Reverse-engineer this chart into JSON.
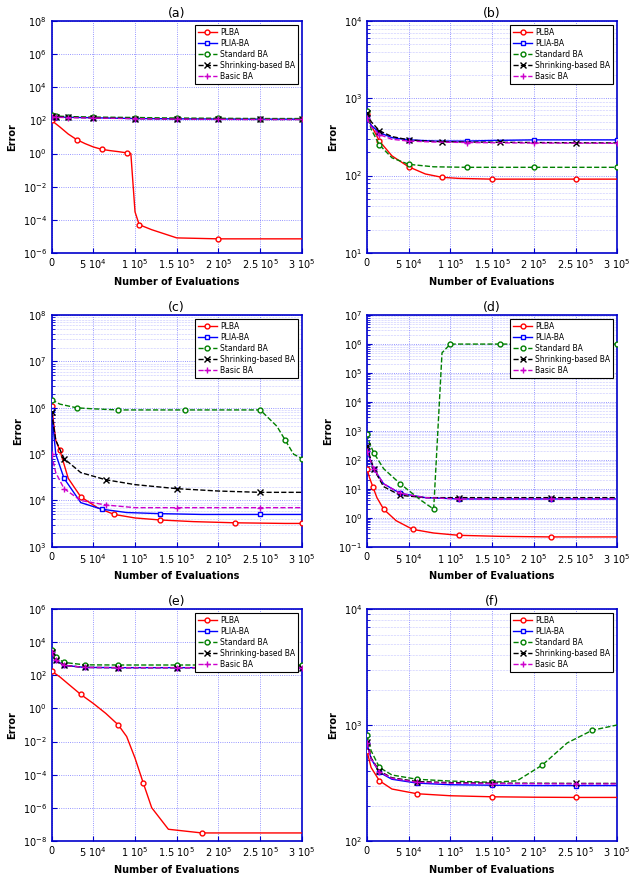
{
  "subplot_titles": [
    "(a)",
    "(b)",
    "(c)",
    "(d)",
    "(e)",
    "(f)"
  ],
  "xlabel": "Number of Evaluations",
  "ylabel": "Error",
  "plots": {
    "a": {
      "ylim": [
        1e-06,
        100000000.0
      ],
      "lines": {
        "PLBA": {
          "x": [
            0,
            10000,
            20000,
            30000,
            40000,
            50000,
            60000,
            70000,
            80000,
            90000,
            95000,
            100000,
            105000,
            120000,
            150000,
            200000,
            250000,
            300000
          ],
          "y": [
            100,
            40,
            15,
            7,
            4,
            2.5,
            1.8,
            1.5,
            1.3,
            1.1,
            1.0,
            0.0003,
            5e-05,
            2.5e-05,
            8e-06,
            7e-06,
            7e-06,
            7e-06
          ]
        },
        "PLIA-BA": {
          "x": [
            0,
            5000,
            20000,
            50000,
            100000,
            150000,
            200000,
            250000,
            300000
          ],
          "y": [
            170,
            160,
            155,
            145,
            130,
            125,
            122,
            120,
            120
          ]
        },
        "Standard BA": {
          "x": [
            0,
            5000,
            20000,
            50000,
            100000,
            150000,
            200000,
            250000,
            300000
          ],
          "y": [
            200,
            185,
            170,
            160,
            150,
            140,
            135,
            130,
            130
          ]
        },
        "Shrinking-based BA": {
          "x": [
            0,
            5000,
            20000,
            50000,
            100000,
            150000,
            200000,
            250000,
            300000
          ],
          "y": [
            180,
            165,
            155,
            145,
            130,
            122,
            118,
            115,
            115
          ]
        },
        "Basic BA": {
          "x": [
            0,
            5000,
            20000,
            50000,
            100000,
            150000,
            200000,
            250000,
            300000
          ],
          "y": [
            160,
            155,
            148,
            140,
            128,
            120,
            116,
            114,
            114
          ]
        }
      }
    },
    "b": {
      "ylim": [
        10,
        10000.0
      ],
      "lines": {
        "PLBA": {
          "x": [
            0,
            5000,
            15000,
            30000,
            50000,
            70000,
            90000,
            110000,
            150000,
            200000,
            250000,
            300000
          ],
          "y": [
            620,
            450,
            280,
            180,
            130,
            105,
            95,
            92,
            90,
            90,
            90,
            90
          ]
        },
        "PLIA-BA": {
          "x": [
            0,
            5000,
            15000,
            30000,
            50000,
            80000,
            120000,
            150000,
            200000,
            250000,
            300000
          ],
          "y": [
            570,
            450,
            360,
            310,
            290,
            280,
            280,
            285,
            290,
            290,
            290
          ]
        },
        "Standard BA": {
          "x": [
            0,
            5000,
            15000,
            30000,
            50000,
            80000,
            120000,
            150000,
            200000,
            250000,
            300000
          ],
          "y": [
            680,
            400,
            250,
            170,
            140,
            130,
            128,
            128,
            128,
            128,
            128
          ]
        },
        "Shrinking-based BA": {
          "x": [
            0,
            5000,
            15000,
            30000,
            50000,
            70000,
            90000,
            120000,
            160000,
            200000,
            250000,
            300000
          ],
          "y": [
            650,
            500,
            380,
            320,
            290,
            280,
            275,
            272,
            270,
            268,
            266,
            265
          ]
        },
        "Basic BA": {
          "x": [
            0,
            5000,
            15000,
            30000,
            50000,
            80000,
            120000,
            150000,
            200000,
            250000,
            300000
          ],
          "y": [
            550,
            430,
            340,
            295,
            280,
            272,
            268,
            266,
            264,
            263,
            262
          ]
        }
      }
    },
    "c": {
      "ylim": [
        1000,
        100000000.0
      ],
      "lines": {
        "PLBA": {
          "x": [
            0,
            5000,
            10000,
            20000,
            35000,
            55000,
            75000,
            100000,
            130000,
            170000,
            220000,
            280000,
            300000
          ],
          "y": [
            1100000,
            200000,
            120000,
            30000,
            12000,
            7000,
            5000,
            4200,
            3800,
            3500,
            3300,
            3200,
            3200
          ]
        },
        "PLIA-BA": {
          "x": [
            0,
            5000,
            15000,
            35000,
            60000,
            90000,
            130000,
            180000,
            250000,
            300000
          ],
          "y": [
            900000,
            100000,
            30000,
            9000,
            6500,
            5500,
            5200,
            5000,
            5000,
            5000
          ]
        },
        "Standard BA": {
          "x": [
            0,
            10000,
            30000,
            50000,
            80000,
            120000,
            160000,
            200000,
            250000,
            270000,
            280000,
            290000,
            300000
          ],
          "y": [
            1500000,
            1200000,
            1000000,
            950000,
            900000,
            900000,
            900000,
            900000,
            900000,
            400000,
            200000,
            100000,
            80000
          ]
        },
        "Shrinking-based BA": {
          "x": [
            0,
            5000,
            15000,
            35000,
            65000,
            100000,
            150000,
            200000,
            250000,
            300000
          ],
          "y": [
            800000,
            200000,
            80000,
            40000,
            28000,
            22000,
            18000,
            16000,
            15000,
            15000
          ]
        },
        "Basic BA": {
          "x": [
            0,
            5000,
            15000,
            35000,
            65000,
            100000,
            150000,
            200000,
            250000,
            300000
          ],
          "y": [
            100000,
            40000,
            18000,
            10000,
            8000,
            7000,
            7000,
            7000,
            7000,
            7000
          ]
        }
      }
    },
    "d": {
      "ylim": [
        0.1,
        10000000.0
      ],
      "lines": {
        "PLBA": {
          "x": [
            0,
            3000,
            7000,
            12000,
            20000,
            35000,
            55000,
            80000,
            110000,
            160000,
            220000,
            300000
          ],
          "y": [
            50,
            25,
            12,
            5,
            2,
            0.8,
            0.4,
            0.3,
            0.25,
            0.23,
            0.22,
            0.22
          ]
        },
        "PLIA-BA": {
          "x": [
            0,
            3000,
            8000,
            20000,
            40000,
            70000,
            110000,
            160000,
            220000,
            300000
          ],
          "y": [
            200,
            120,
            50,
            15,
            7,
            5,
            4.5,
            4.5,
            4.5,
            4.5
          ]
        },
        "Standard BA": {
          "x": [
            0,
            3000,
            8000,
            20000,
            40000,
            65000,
            80000,
            90000,
            100000,
            120000,
            160000,
            220000,
            300000
          ],
          "y": [
            800,
            400,
            180,
            50,
            15,
            4,
            2,
            500000,
            1000000,
            1000000,
            1000000,
            1000000,
            1000000
          ]
        },
        "Shrinking-based BA": {
          "x": [
            0,
            3000,
            8000,
            20000,
            40000,
            70000,
            110000,
            160000,
            220000,
            300000
          ],
          "y": [
            300,
            150,
            50,
            12,
            6,
            5,
            5,
            5,
            5,
            5
          ]
        },
        "Basic BA": {
          "x": [
            0,
            3000,
            8000,
            20000,
            40000,
            70000,
            110000,
            160000,
            220000,
            300000
          ],
          "y": [
            200,
            120,
            50,
            15,
            7,
            5,
            4.5,
            4.5,
            4.5,
            4.5
          ]
        }
      }
    },
    "e": {
      "ylim": [
        1e-08,
        1000000.0
      ],
      "lines": {
        "PLBA": {
          "x": [
            0,
            10000,
            20000,
            35000,
            50000,
            65000,
            80000,
            90000,
            100000,
            110000,
            120000,
            140000,
            180000,
            250000,
            300000
          ],
          "y": [
            180,
            80,
            30,
            7,
            2,
            0.5,
            0.1,
            0.02,
            0.001,
            3e-05,
            1e-06,
            5e-08,
            3e-08,
            3e-08,
            3e-08
          ]
        },
        "PLIA-BA": {
          "x": [
            0,
            5000,
            15000,
            40000,
            80000,
            150000,
            200000,
            250000,
            300000
          ],
          "y": [
            2500,
            800,
            400,
            300,
            290,
            290,
            290,
            290,
            290
          ]
        },
        "Standard BA": {
          "x": [
            0,
            5000,
            15000,
            40000,
            80000,
            150000,
            200000,
            250000,
            300000
          ],
          "y": [
            3500,
            1200,
            600,
            430,
            420,
            420,
            420,
            420,
            420
          ]
        },
        "Shrinking-based BA": {
          "x": [
            0,
            5000,
            15000,
            40000,
            80000,
            150000,
            200000,
            250000,
            300000
          ],
          "y": [
            2500,
            800,
            400,
            300,
            290,
            290,
            290,
            290,
            290
          ]
        },
        "Basic BA": {
          "x": [
            0,
            5000,
            15000,
            40000,
            80000,
            150000,
            200000,
            250000,
            300000
          ],
          "y": [
            2500,
            800,
            400,
            300,
            290,
            290,
            290,
            290,
            290
          ]
        }
      }
    },
    "f": {
      "ylim": [
        100,
        10000.0
      ],
      "lines": {
        "PLBA": {
          "x": [
            0,
            5000,
            15000,
            30000,
            60000,
            100000,
            150000,
            200000,
            250000,
            300000
          ],
          "y": [
            600,
            430,
            330,
            280,
            255,
            245,
            240,
            238,
            237,
            237
          ]
        },
        "PLIA-BA": {
          "x": [
            0,
            5000,
            15000,
            30000,
            60000,
            100000,
            150000,
            200000,
            250000,
            300000
          ],
          "y": [
            700,
            510,
            390,
            340,
            315,
            305,
            302,
            300,
            300,
            300
          ]
        },
        "Standard BA": {
          "x": [
            0,
            5000,
            15000,
            30000,
            60000,
            100000,
            150000,
            180000,
            210000,
            240000,
            270000,
            300000
          ],
          "y": [
            820,
            600,
            430,
            370,
            340,
            328,
            320,
            330,
            450,
            700,
            900,
            1000
          ]
        },
        "Shrinking-based BA": {
          "x": [
            0,
            5000,
            15000,
            30000,
            60000,
            100000,
            150000,
            200000,
            250000,
            300000
          ],
          "y": [
            710,
            520,
            400,
            350,
            325,
            318,
            315,
            314,
            313,
            313
          ]
        },
        "Basic BA": {
          "x": [
            0,
            5000,
            15000,
            30000,
            60000,
            100000,
            150000,
            200000,
            250000,
            300000
          ],
          "y": [
            700,
            510,
            395,
            346,
            320,
            314,
            312,
            311,
            310,
            310
          ]
        }
      }
    }
  },
  "line_props": {
    "PLBA": {
      "color": "#ff0000",
      "ls": "-",
      "marker": "o",
      "ms": 3.5
    },
    "PLIA-BA": {
      "color": "#0000ff",
      "ls": "-",
      "marker": "s",
      "ms": 3.5
    },
    "Standard BA": {
      "color": "#008000",
      "ls": "--",
      "marker": "o",
      "ms": 3.5
    },
    "Shrinking-based BA": {
      "color": "#000000",
      "ls": "--",
      "marker": "x",
      "ms": 4.5
    },
    "Basic BA": {
      "color": "#cc00cc",
      "ls": "--",
      "marker": "+",
      "ms": 4.5
    }
  },
  "grid_color": "#6666ff",
  "spine_color": "#0000cc",
  "bg_color": "#ffffff",
  "xticks": [
    0,
    50000,
    100000,
    150000,
    200000,
    250000,
    300000
  ],
  "xtick_labels": [
    "0",
    "5 10$^4$",
    "1 10$^5$",
    "1.5 10$^5$",
    "2 10$^5$",
    "2.5 10$^5$",
    "3 10$^5$"
  ]
}
